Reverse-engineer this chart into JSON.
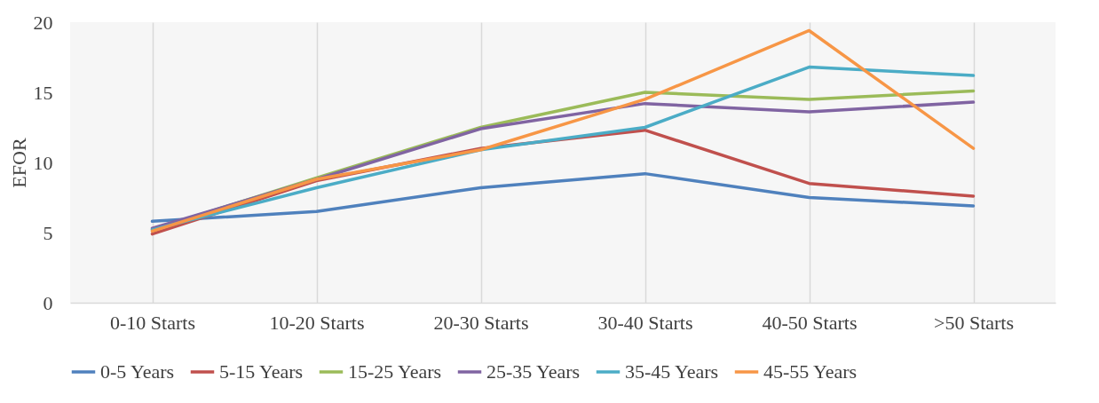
{
  "chart_data": {
    "type": "line",
    "ylabel": "EFOR",
    "categories": [
      "0-10 Starts",
      "10-20 Starts",
      "20-30 Starts",
      "30-40 Starts",
      "40-50 Starts",
      ">50 Starts"
    ],
    "series": [
      {
        "name": "0-5 Years",
        "color": "#4f81bd",
        "values": [
          5.8,
          6.5,
          8.2,
          9.2,
          7.5,
          6.9
        ]
      },
      {
        "name": "5-15 Years",
        "color": "#c0504d",
        "values": [
          4.9,
          8.7,
          11.0,
          12.3,
          8.5,
          7.6
        ]
      },
      {
        "name": "15-25 Years",
        "color": "#9bbb59",
        "values": [
          5.2,
          8.9,
          12.5,
          15.0,
          14.5,
          15.1
        ]
      },
      {
        "name": "25-35 Years",
        "color": "#8064a2",
        "values": [
          5.3,
          8.8,
          12.4,
          14.2,
          13.6,
          14.3
        ]
      },
      {
        "name": "35-45 Years",
        "color": "#4bacc6",
        "values": [
          5.2,
          8.2,
          10.9,
          12.5,
          16.8,
          16.2
        ]
      },
      {
        "name": "45-55 Years",
        "color": "#f79646",
        "values": [
          5.1,
          8.8,
          10.9,
          14.5,
          19.4,
          11.0
        ]
      }
    ],
    "ylim": [
      0,
      20
    ],
    "yticks": [
      0,
      5,
      10,
      15,
      20
    ],
    "grid": "x",
    "legend": "bottom",
    "marker": "none",
    "line_style": "solid"
  }
}
